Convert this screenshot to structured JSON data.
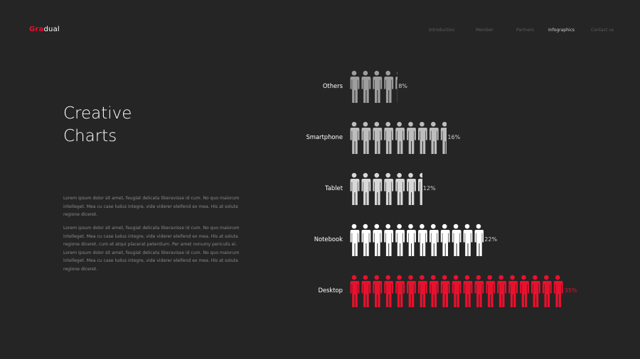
{
  "header": {
    "logo_accent": "Gra",
    "logo_rest": "dual",
    "nav": [
      {
        "label": "Introduction",
        "active": false
      },
      {
        "label": "Member",
        "active": false
      },
      {
        "label": "Partners",
        "active": false
      },
      {
        "label": "Infographics",
        "active": true
      },
      {
        "label": "Contact us",
        "active": false
      }
    ]
  },
  "main": {
    "title_line1": "Creative",
    "title_line2": "Charts",
    "paragraph1": "Lorem ipsum dolor sit amet, feugiat delicata liberavisse id cum. No quo maiorum intelleget. Mea cu case ludus integre, vide viderer eleifend ex mea. His at soluta regione diceret.",
    "paragraph2": "Lorem ipsum dolor sit amet, feugiat delicata liberavisse id cum. No quo maiorum intelleget. Mea cu case ludus integre, vide viderer eleifend ex mea. His at soluta regione diceret, cum et atqui placerat petentium. Per amet nonumy periculis ei. Lorem ipsum dolor sit amet, feugiat delicata liberavisse id cum. No quo maiorum intelleget. Mea cu case ludus integre, vide viderer eleifend ex mea. His at soluta regione diceret."
  },
  "chart_data": {
    "type": "bar",
    "orientation": "horizontal-pictogram",
    "categories": [
      "Others",
      "Smartphone",
      "Tablet",
      "Notebook",
      "Desktop"
    ],
    "values": [
      8,
      16,
      12,
      22,
      35
    ],
    "value_labels": [
      "8%",
      "16%",
      "12%",
      "22%",
      "35%"
    ],
    "colors": [
      "#9e9e9e",
      "#bdbdbd",
      "#d8d8d8",
      "#ffffff",
      "#e8112d"
    ],
    "unit": "%"
  }
}
